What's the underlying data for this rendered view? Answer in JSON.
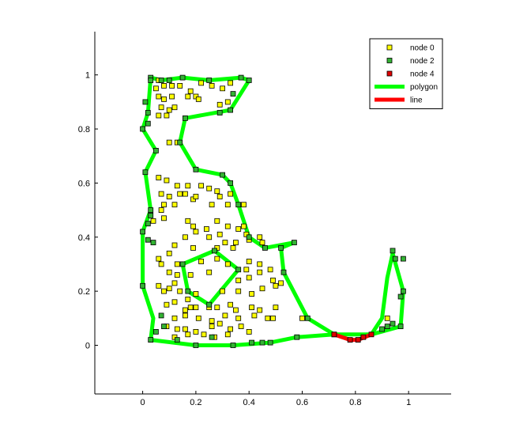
{
  "chart_data": {
    "type": "scatter",
    "title": "",
    "xlabel": "",
    "ylabel": "",
    "xlim": [
      -0.18,
      1.16
    ],
    "ylim": [
      -0.18,
      1.16
    ],
    "xticks": [
      "0",
      "0.2",
      "0.4",
      "0.6",
      "0.8",
      "1"
    ],
    "yticks": [
      "0",
      "0.2",
      "0.4",
      "0.6",
      "0.8",
      "1"
    ],
    "grid": false,
    "legend_position": "top-right",
    "colors": {
      "node0": "#ffff00",
      "node2": "#33b233",
      "node4": "#e00000",
      "polygon": "#00ff00",
      "line": "#ff0000",
      "marker_edge": "#000000"
    },
    "series": [
      {
        "name": "polygon",
        "kind": "polygon",
        "polygons": [
          [
            [
              0.03,
              0.02
            ],
            [
              0.2,
              0.0
            ],
            [
              0.34,
              0.0
            ],
            [
              0.48,
              0.01
            ],
            [
              0.58,
              0.03
            ],
            [
              0.72,
              0.04
            ],
            [
              0.86,
              0.04
            ],
            [
              0.97,
              0.07
            ],
            [
              0.98,
              0.2
            ],
            [
              0.94,
              0.34
            ],
            [
              0.92,
              0.25
            ],
            [
              0.9,
              0.1
            ],
            [
              0.86,
              0.04
            ],
            [
              0.72,
              0.04
            ],
            [
              0.62,
              0.1
            ],
            [
              0.53,
              0.27
            ],
            [
              0.52,
              0.36
            ],
            [
              0.57,
              0.38
            ],
            [
              0.46,
              0.36
            ],
            [
              0.4,
              0.4
            ],
            [
              0.36,
              0.52
            ],
            [
              0.33,
              0.6
            ],
            [
              0.3,
              0.63
            ],
            [
              0.2,
              0.65
            ],
            [
              0.14,
              0.75
            ],
            [
              0.16,
              0.84
            ],
            [
              0.33,
              0.87
            ],
            [
              0.4,
              0.98
            ],
            [
              0.37,
              0.99
            ],
            [
              0.25,
              0.98
            ],
            [
              0.15,
              0.99
            ],
            [
              0.07,
              0.98
            ],
            [
              0.03,
              0.99
            ],
            [
              0.02,
              0.86
            ],
            [
              0.0,
              0.8
            ],
            [
              0.05,
              0.72
            ],
            [
              0.01,
              0.64
            ],
            [
              0.03,
              0.5
            ],
            [
              0.0,
              0.42
            ],
            [
              0.0,
              0.22
            ],
            [
              0.04,
              0.1
            ],
            [
              0.03,
              0.02
            ]
          ],
          [
            [
              0.15,
              0.3
            ],
            [
              0.27,
              0.35
            ],
            [
              0.36,
              0.28
            ],
            [
              0.25,
              0.15
            ],
            [
              0.17,
              0.2
            ],
            [
              0.15,
              0.3
            ]
          ]
        ]
      },
      {
        "name": "line",
        "kind": "line",
        "points": [
          [
            0.72,
            0.04
          ],
          [
            0.78,
            0.02
          ],
          [
            0.81,
            0.02
          ],
          [
            0.86,
            0.04
          ]
        ]
      },
      {
        "name": "node 0",
        "kind": "marker",
        "points": [
          [
            0.06,
            0.98
          ],
          [
            0.08,
            0.96
          ],
          [
            0.05,
            0.95
          ],
          [
            0.11,
            0.96
          ],
          [
            0.14,
            0.96
          ],
          [
            0.18,
            0.94
          ],
          [
            0.22,
            0.97
          ],
          [
            0.26,
            0.96
          ],
          [
            0.3,
            0.95
          ],
          [
            0.33,
            0.97
          ],
          [
            0.06,
            0.92
          ],
          [
            0.08,
            0.91
          ],
          [
            0.11,
            0.92
          ],
          [
            0.17,
            0.92
          ],
          [
            0.2,
            0.92
          ],
          [
            0.21,
            0.91
          ],
          [
            0.07,
            0.88
          ],
          [
            0.1,
            0.87
          ],
          [
            0.06,
            0.85
          ],
          [
            0.09,
            0.85
          ],
          [
            0.12,
            0.88
          ],
          [
            0.29,
            0.89
          ],
          [
            0.32,
            0.9
          ],
          [
            0.1,
            0.75
          ],
          [
            0.13,
            0.75
          ],
          [
            0.06,
            0.62
          ],
          [
            0.09,
            0.61
          ],
          [
            0.13,
            0.59
          ],
          [
            0.17,
            0.59
          ],
          [
            0.22,
            0.59
          ],
          [
            0.25,
            0.58
          ],
          [
            0.07,
            0.56
          ],
          [
            0.1,
            0.55
          ],
          [
            0.14,
            0.56
          ],
          [
            0.16,
            0.56
          ],
          [
            0.19,
            0.54
          ],
          [
            0.12,
            0.52
          ],
          [
            0.07,
            0.5
          ],
          [
            0.08,
            0.52
          ],
          [
            0.2,
            0.55
          ],
          [
            0.28,
            0.57
          ],
          [
            0.33,
            0.56
          ],
          [
            0.29,
            0.55
          ],
          [
            0.26,
            0.52
          ],
          [
            0.32,
            0.52
          ],
          [
            0.38,
            0.52
          ],
          [
            0.04,
            0.46
          ],
          [
            0.08,
            0.47
          ],
          [
            0.17,
            0.46
          ],
          [
            0.19,
            0.44
          ],
          [
            0.24,
            0.43
          ],
          [
            0.28,
            0.46
          ],
          [
            0.32,
            0.44
          ],
          [
            0.36,
            0.43
          ],
          [
            0.38,
            0.44
          ],
          [
            0.16,
            0.4
          ],
          [
            0.2,
            0.42
          ],
          [
            0.25,
            0.4
          ],
          [
            0.29,
            0.41
          ],
          [
            0.31,
            0.38
          ],
          [
            0.35,
            0.38
          ],
          [
            0.39,
            0.41
          ],
          [
            0.4,
            0.39
          ],
          [
            0.44,
            0.4
          ],
          [
            0.45,
            0.38
          ],
          [
            0.19,
            0.36
          ],
          [
            0.28,
            0.36
          ],
          [
            0.34,
            0.36
          ],
          [
            0.1,
            0.34
          ],
          [
            0.12,
            0.37
          ],
          [
            0.06,
            0.32
          ],
          [
            0.07,
            0.3
          ],
          [
            0.13,
            0.3
          ],
          [
            0.22,
            0.31
          ],
          [
            0.28,
            0.32
          ],
          [
            0.32,
            0.3
          ],
          [
            0.4,
            0.31
          ],
          [
            0.44,
            0.3
          ],
          [
            0.48,
            0.28
          ],
          [
            0.1,
            0.27
          ],
          [
            0.13,
            0.26
          ],
          [
            0.18,
            0.26
          ],
          [
            0.25,
            0.27
          ],
          [
            0.39,
            0.28
          ],
          [
            0.44,
            0.27
          ],
          [
            0.36,
            0.24
          ],
          [
            0.4,
            0.25
          ],
          [
            0.49,
            0.24
          ],
          [
            0.06,
            0.22
          ],
          [
            0.08,
            0.2
          ],
          [
            0.1,
            0.21
          ],
          [
            0.12,
            0.23
          ],
          [
            0.14,
            0.2
          ],
          [
            0.17,
            0.17
          ],
          [
            0.2,
            0.19
          ],
          [
            0.3,
            0.2
          ],
          [
            0.36,
            0.2
          ],
          [
            0.41,
            0.19
          ],
          [
            0.45,
            0.21
          ],
          [
            0.5,
            0.22
          ],
          [
            0.52,
            0.23
          ],
          [
            0.09,
            0.15
          ],
          [
            0.12,
            0.16
          ],
          [
            0.16,
            0.13
          ],
          [
            0.18,
            0.14
          ],
          [
            0.2,
            0.14
          ],
          [
            0.25,
            0.14
          ],
          [
            0.28,
            0.14
          ],
          [
            0.33,
            0.15
          ],
          [
            0.35,
            0.13
          ],
          [
            0.41,
            0.14
          ],
          [
            0.44,
            0.13
          ],
          [
            0.5,
            0.14
          ],
          [
            0.12,
            0.1
          ],
          [
            0.16,
            0.11
          ],
          [
            0.21,
            0.1
          ],
          [
            0.26,
            0.09
          ],
          [
            0.31,
            0.11
          ],
          [
            0.36,
            0.1
          ],
          [
            0.42,
            0.11
          ],
          [
            0.47,
            0.1
          ],
          [
            0.49,
            0.1
          ],
          [
            0.09,
            0.07
          ],
          [
            0.13,
            0.06
          ],
          [
            0.16,
            0.06
          ],
          [
            0.2,
            0.05
          ],
          [
            0.26,
            0.07
          ],
          [
            0.29,
            0.08
          ],
          [
            0.33,
            0.06
          ],
          [
            0.37,
            0.07
          ],
          [
            0.4,
            0.05
          ],
          [
            0.12,
            0.03
          ],
          [
            0.17,
            0.04
          ],
          [
            0.23,
            0.04
          ],
          [
            0.27,
            0.03
          ],
          [
            0.32,
            0.04
          ],
          [
            0.6,
            0.1
          ],
          [
            0.92,
            0.1
          ]
        ]
      },
      {
        "name": "node 2",
        "kind": "marker",
        "points": [
          [
            0.03,
            0.02
          ],
          [
            0.13,
            0.02
          ],
          [
            0.2,
            0.0
          ],
          [
            0.26,
            0.03
          ],
          [
            0.34,
            0.0
          ],
          [
            0.41,
            0.01
          ],
          [
            0.45,
            0.01
          ],
          [
            0.48,
            0.01
          ],
          [
            0.58,
            0.03
          ],
          [
            0.62,
            0.1
          ],
          [
            0.53,
            0.27
          ],
          [
            0.52,
            0.36
          ],
          [
            0.57,
            0.38
          ],
          [
            0.46,
            0.36
          ],
          [
            0.4,
            0.4
          ],
          [
            0.36,
            0.52
          ],
          [
            0.33,
            0.6
          ],
          [
            0.3,
            0.63
          ],
          [
            0.2,
            0.65
          ],
          [
            0.14,
            0.75
          ],
          [
            0.16,
            0.84
          ],
          [
            0.29,
            0.86
          ],
          [
            0.33,
            0.87
          ],
          [
            0.34,
            0.93
          ],
          [
            0.4,
            0.98
          ],
          [
            0.37,
            0.99
          ],
          [
            0.25,
            0.98
          ],
          [
            0.15,
            0.99
          ],
          [
            0.1,
            0.98
          ],
          [
            0.07,
            0.98
          ],
          [
            0.03,
            0.99
          ],
          [
            0.03,
            0.98
          ],
          [
            0.01,
            0.9
          ],
          [
            0.02,
            0.86
          ],
          [
            0.02,
            0.82
          ],
          [
            0.0,
            0.8
          ],
          [
            0.05,
            0.72
          ],
          [
            0.01,
            0.64
          ],
          [
            0.03,
            0.5
          ],
          [
            0.03,
            0.48
          ],
          [
            0.02,
            0.45
          ],
          [
            0.0,
            0.42
          ],
          [
            0.02,
            0.39
          ],
          [
            0.04,
            0.38
          ],
          [
            0.0,
            0.22
          ],
          [
            0.07,
            0.11
          ],
          [
            0.08,
            0.07
          ],
          [
            0.05,
            0.05
          ],
          [
            0.72,
            0.04
          ],
          [
            0.92,
            0.07
          ],
          [
            0.94,
            0.08
          ],
          [
            0.97,
            0.07
          ],
          [
            0.97,
            0.18
          ],
          [
            0.98,
            0.2
          ],
          [
            0.98,
            0.32
          ],
          [
            0.94,
            0.35
          ],
          [
            0.95,
            0.32
          ],
          [
            0.9,
            0.06
          ],
          [
            0.15,
            0.3
          ],
          [
            0.27,
            0.35
          ],
          [
            0.36,
            0.28
          ],
          [
            0.25,
            0.15
          ],
          [
            0.17,
            0.2
          ]
        ]
      },
      {
        "name": "node 4",
        "kind": "marker",
        "points": [
          [
            0.72,
            0.04
          ],
          [
            0.78,
            0.02
          ],
          [
            0.81,
            0.02
          ],
          [
            0.83,
            0.03
          ],
          [
            0.86,
            0.04
          ]
        ]
      }
    ],
    "legend": [
      {
        "label": "node 0",
        "style": "marker",
        "color": "#ffff00"
      },
      {
        "label": "node 2",
        "style": "marker",
        "color": "#33b233"
      },
      {
        "label": "node 4",
        "style": "marker",
        "color": "#e00000"
      },
      {
        "label": "polygon",
        "style": "line",
        "color": "#00ff00"
      },
      {
        "label": "line",
        "style": "line",
        "color": "#ff0000"
      }
    ]
  }
}
